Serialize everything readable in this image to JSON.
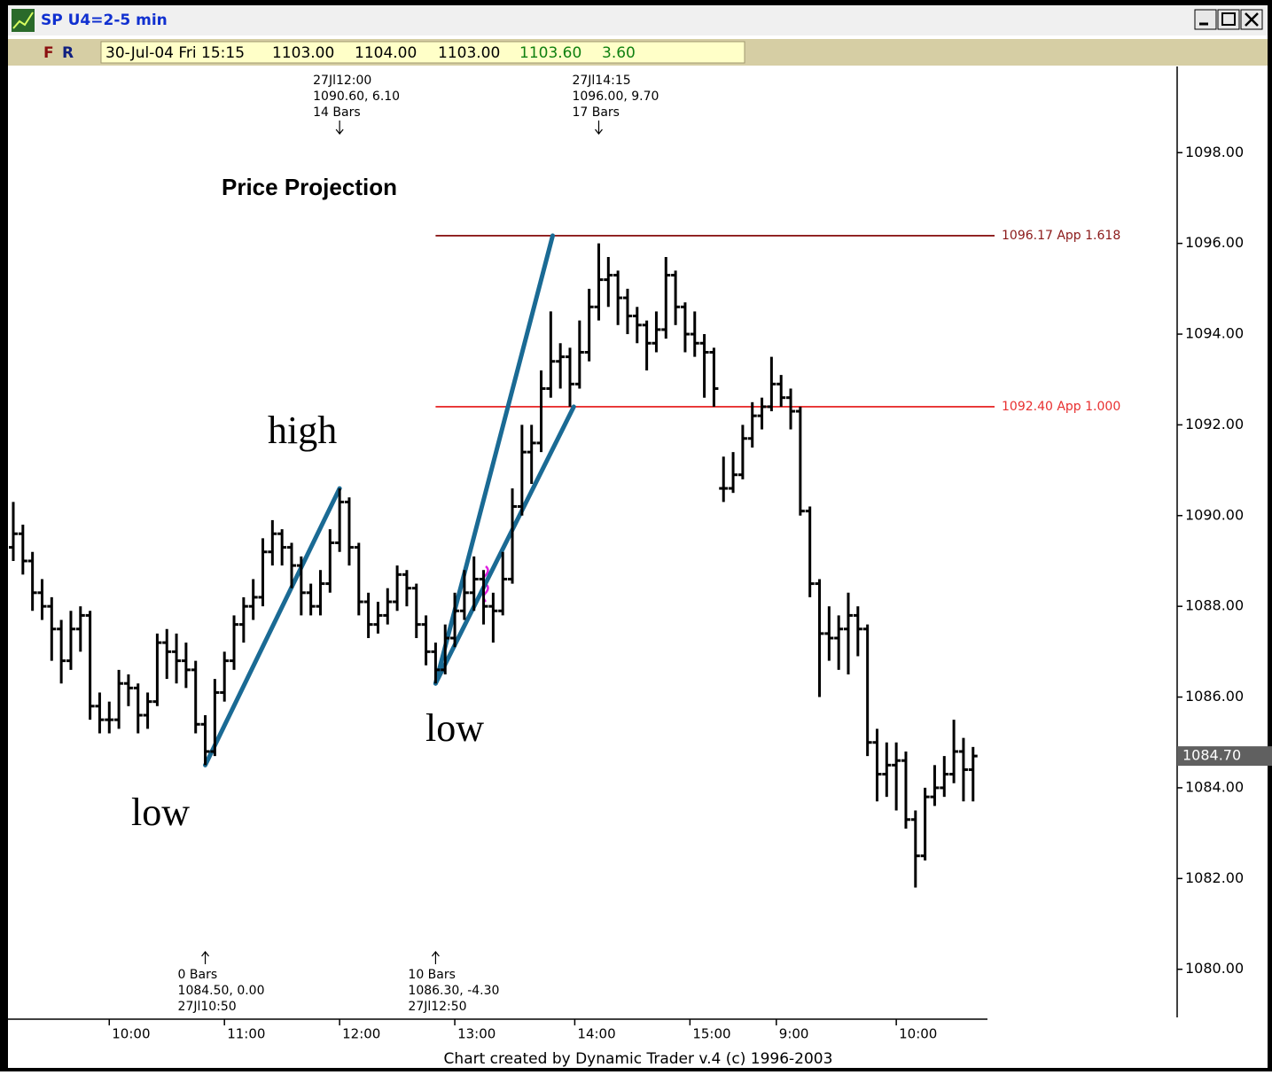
{
  "window": {
    "title": "SP U4=2-5 min"
  },
  "toolbar": {
    "buttons": [
      "F",
      "R"
    ],
    "fields": [
      "30-Jul-04 Fri 15:15",
      "1103.00",
      "1104.00",
      "1103.00",
      "1103.60",
      "3.60"
    ]
  },
  "footer": "Chart created by Dynamic Trader v.4  (c) 1996-2003",
  "chart_data": {
    "type": "ohlc",
    "title": "Price Projection",
    "xlim": [
      -1.2,
      101.5
    ],
    "xticks": [
      {
        "value": 10,
        "label": "10:00"
      },
      {
        "value": 22,
        "label": "11:00"
      },
      {
        "value": 34,
        "label": "12:00"
      },
      {
        "value": 46,
        "label": "13:00"
      },
      {
        "value": 58.5,
        "label": "14:00"
      },
      {
        "value": 70.5,
        "label": "15:00"
      },
      {
        "value": 79.5,
        "label": "9:00"
      },
      {
        "value": 92,
        "label": "10:00"
      }
    ],
    "ylim": [
      1078.9,
      1099.9
    ],
    "yticks": [
      {
        "value": 1080,
        "label": "1080.00"
      },
      {
        "value": 1082,
        "label": "1082.00"
      },
      {
        "value": 1084,
        "label": "1084.00"
      },
      {
        "value": 1086,
        "label": "1086.00"
      },
      {
        "value": 1088,
        "label": "1088.00"
      },
      {
        "value": 1090,
        "label": "1090.00"
      },
      {
        "value": 1092,
        "label": "1092.00"
      },
      {
        "value": 1094,
        "label": "1094.00"
      },
      {
        "value": 1096,
        "label": "1096.00"
      },
      {
        "value": 1098,
        "label": "1098.00"
      }
    ],
    "color": "#000000",
    "ohlc": [
      [
        1089.3,
        1090.3,
        1089.0,
        1089.6
      ],
      [
        1089.6,
        1089.8,
        1088.7,
        1089.0
      ],
      [
        1089.0,
        1089.2,
        1087.9,
        1088.3
      ],
      [
        1088.3,
        1088.6,
        1087.7,
        1088.0
      ],
      [
        1088.0,
        1088.2,
        1086.8,
        1087.5
      ],
      [
        1087.5,
        1087.7,
        1086.3,
        1086.8
      ],
      [
        1086.8,
        1087.9,
        1086.6,
        1087.5
      ],
      [
        1087.5,
        1088.0,
        1087.0,
        1087.8
      ],
      [
        1087.8,
        1087.9,
        1085.5,
        1085.8
      ],
      [
        1085.8,
        1086.1,
        1085.2,
        1085.5
      ],
      [
        1085.5,
        1085.9,
        1085.2,
        1085.5
      ],
      [
        1085.5,
        1086.6,
        1085.3,
        1086.3
      ],
      [
        1086.3,
        1086.5,
        1085.8,
        1086.2
      ],
      [
        1086.2,
        1086.3,
        1085.2,
        1085.6
      ],
      [
        1085.6,
        1086.1,
        1085.3,
        1085.9
      ],
      [
        1085.9,
        1087.4,
        1085.8,
        1087.2
      ],
      [
        1087.2,
        1087.5,
        1086.4,
        1087.0
      ],
      [
        1087.0,
        1087.4,
        1086.3,
        1086.8
      ],
      [
        1086.8,
        1087.2,
        1086.2,
        1086.6
      ],
      [
        1086.6,
        1086.8,
        1085.2,
        1085.4
      ],
      [
        1085.4,
        1085.6,
        1084.5,
        1084.8
      ],
      [
        1084.8,
        1086.4,
        1084.7,
        1086.1
      ],
      [
        1086.1,
        1087.0,
        1085.9,
        1086.8
      ],
      [
        1086.8,
        1087.8,
        1086.6,
        1087.6
      ],
      [
        1087.6,
        1088.2,
        1087.2,
        1088.0
      ],
      [
        1088.0,
        1088.6,
        1087.7,
        1088.2
      ],
      [
        1088.2,
        1089.5,
        1088.0,
        1089.2
      ],
      [
        1089.2,
        1089.9,
        1088.9,
        1089.6
      ],
      [
        1089.6,
        1089.7,
        1088.9,
        1089.3
      ],
      [
        1089.3,
        1089.4,
        1088.4,
        1088.9
      ],
      [
        1088.9,
        1089.1,
        1087.8,
        1088.3
      ],
      [
        1088.3,
        1088.5,
        1087.8,
        1088.0
      ],
      [
        1088.0,
        1088.8,
        1087.8,
        1088.5
      ],
      [
        1088.5,
        1089.7,
        1088.3,
        1089.4
      ],
      [
        1089.4,
        1090.6,
        1089.2,
        1090.3
      ],
      [
        1090.3,
        1090.4,
        1088.9,
        1089.3
      ],
      [
        1089.3,
        1089.4,
        1087.8,
        1088.1
      ],
      [
        1088.1,
        1088.3,
        1087.3,
        1087.6
      ],
      [
        1087.6,
        1088.1,
        1087.4,
        1087.8
      ],
      [
        1087.8,
        1088.4,
        1087.6,
        1088.1
      ],
      [
        1088.1,
        1088.9,
        1087.9,
        1088.7
      ],
      [
        1088.7,
        1088.8,
        1088.0,
        1088.4
      ],
      [
        1088.4,
        1088.5,
        1087.3,
        1087.6
      ],
      [
        1087.6,
        1087.8,
        1086.7,
        1087.0
      ],
      [
        1087.0,
        1087.2,
        1086.3,
        1086.6
      ],
      [
        1086.6,
        1087.6,
        1086.5,
        1087.3
      ],
      [
        1087.3,
        1088.3,
        1087.1,
        1087.9
      ],
      [
        1087.9,
        1088.8,
        1087.7,
        1088.3
      ],
      [
        1088.3,
        1089.1,
        1087.9,
        1088.6
      ],
      [
        1088.6,
        1088.8,
        1087.6,
        1088.0
      ],
      [
        1088.0,
        1088.3,
        1087.2,
        1087.9
      ],
      [
        1087.9,
        1089.2,
        1087.8,
        1088.6
      ],
      [
        1088.6,
        1090.6,
        1088.5,
        1090.2
      ],
      [
        1090.2,
        1092.0,
        1090.0,
        1091.4
      ],
      [
        1091.4,
        1092.0,
        1090.7,
        1091.6
      ],
      [
        1091.6,
        1093.2,
        1091.4,
        1092.8
      ],
      [
        1092.8,
        1094.5,
        1092.6,
        1093.4
      ],
      [
        1093.4,
        1093.8,
        1092.8,
        1093.5
      ],
      [
        1093.5,
        1093.7,
        1092.4,
        1092.9
      ],
      [
        1092.9,
        1094.3,
        1092.8,
        1093.6
      ],
      [
        1093.6,
        1095.0,
        1093.4,
        1094.6
      ],
      [
        1094.6,
        1096.0,
        1094.3,
        1095.2
      ],
      [
        1095.2,
        1095.7,
        1094.6,
        1095.3
      ],
      [
        1095.3,
        1095.4,
        1094.2,
        1094.8
      ],
      [
        1094.8,
        1095.0,
        1094.0,
        1094.4
      ],
      [
        1094.4,
        1094.6,
        1093.8,
        1094.2
      ],
      [
        1094.2,
        1094.3,
        1093.2,
        1093.8
      ],
      [
        1093.8,
        1094.5,
        1093.6,
        1094.1
      ],
      [
        1094.1,
        1095.7,
        1093.9,
        1095.3
      ],
      [
        1095.3,
        1095.4,
        1094.2,
        1094.6
      ],
      [
        1094.6,
        1094.7,
        1093.6,
        1094.0
      ],
      [
        1094.0,
        1094.5,
        1093.5,
        1093.8
      ],
      [
        1093.8,
        1094.0,
        1092.6,
        1093.6
      ],
      [
        1093.6,
        1093.7,
        1092.4,
        1092.8
      ],
      [
        1090.6,
        1091.3,
        1090.3,
        1090.6
      ],
      [
        1090.6,
        1091.4,
        1090.5,
        1090.9
      ],
      [
        1090.9,
        1092.0,
        1090.8,
        1091.7
      ],
      [
        1091.7,
        1092.5,
        1091.5,
        1092.2
      ],
      [
        1092.2,
        1092.6,
        1091.9,
        1092.4
      ],
      [
        1092.4,
        1093.5,
        1092.3,
        1092.9
      ],
      [
        1092.9,
        1093.1,
        1092.4,
        1092.6
      ],
      [
        1092.6,
        1092.8,
        1091.9,
        1092.3
      ],
      [
        1092.3,
        1092.4,
        1090.0,
        1090.1
      ],
      [
        1090.1,
        1090.2,
        1088.2,
        1088.5
      ],
      [
        1088.5,
        1088.6,
        1086.0,
        1087.4
      ],
      [
        1087.4,
        1088.0,
        1086.8,
        1087.3
      ],
      [
        1087.3,
        1087.8,
        1086.6,
        1087.5
      ],
      [
        1087.5,
        1088.3,
        1086.5,
        1087.8
      ],
      [
        1087.8,
        1088.0,
        1086.9,
        1087.5
      ],
      [
        1087.5,
        1087.6,
        1084.7,
        1085.0
      ],
      [
        1085.0,
        1085.3,
        1083.7,
        1084.3
      ],
      [
        1084.3,
        1085.0,
        1083.8,
        1084.5
      ],
      [
        1084.5,
        1085.0,
        1083.5,
        1084.6
      ],
      [
        1084.6,
        1084.8,
        1083.1,
        1083.3
      ],
      [
        1083.3,
        1083.5,
        1081.8,
        1082.5
      ],
      [
        1082.5,
        1084.0,
        1082.4,
        1083.8
      ],
      [
        1083.8,
        1084.5,
        1083.6,
        1084.0
      ],
      [
        1084.0,
        1084.7,
        1083.8,
        1084.3
      ],
      [
        1084.3,
        1085.5,
        1084.1,
        1084.8
      ],
      [
        1084.8,
        1085.1,
        1083.7,
        1084.4
      ],
      [
        1084.4,
        1084.9,
        1083.7,
        1084.7
      ]
    ],
    "levels": [
      {
        "value": 1096.17,
        "label": "1096.17 App 1.618",
        "color": "#8b1a1a"
      },
      {
        "value": 1092.4,
        "label": "1092.40 App 1.000",
        "color": "#e83030"
      }
    ],
    "last": {
      "value": 1084.7,
      "label": "1084.70"
    },
    "trend_color": "#1a6a94",
    "top_notes": [
      [
        "27Jl12:00",
        "1090.60, 6.10",
        "14 Bars"
      ],
      [
        "27Jl14:15",
        "1096.00, 9.70",
        "17 Bars"
      ]
    ],
    "bottom_notes": [
      [
        "0 Bars",
        "1084.50, 0.00",
        "27Jl10:50"
      ],
      [
        "10 Bars",
        "1086.30, -4.30",
        "27Jl12:50"
      ]
    ],
    "labels": [
      "high",
      "low",
      "low"
    ]
  }
}
